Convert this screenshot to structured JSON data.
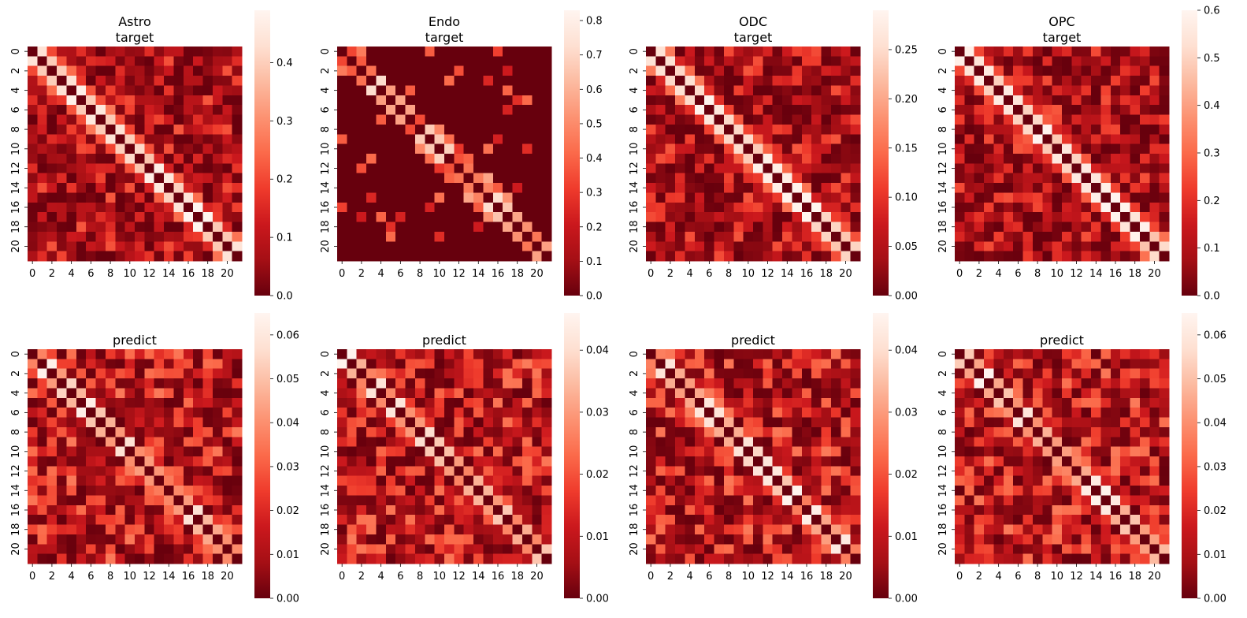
{
  "figure": {
    "layout": "2 rows x 4 columns of heatmaps, each with its own colorbar",
    "colormap": "Reds_r",
    "colormap_stops": [
      "#67000d",
      "#a50f15",
      "#cb181d",
      "#ef3b2c",
      "#fb6a4a",
      "#fc9272",
      "#fcbba1",
      "#fee0d2",
      "#fff5f0"
    ]
  },
  "chart_data": [
    {
      "type": "heatmap",
      "panel": "row1-col1",
      "title": "Astro\ntarget",
      "matrix_size": 22,
      "xticks": [
        "0",
        "2",
        "4",
        "6",
        "8",
        "10",
        "12",
        "14",
        "16",
        "18",
        "20"
      ],
      "yticks": [
        "0",
        "2",
        "4",
        "6",
        "8",
        "10",
        "12",
        "14",
        "16",
        "18",
        "20"
      ],
      "pattern": "diagonal_dark_band_light_offdiag",
      "seed": 11,
      "vmin": 0.0,
      "vmax": 0.49,
      "colorbar_ticks": [
        "0.0",
        "0.1",
        "0.2",
        "0.3",
        "0.4"
      ],
      "colorbar_values": [
        0.0,
        0.1,
        0.2,
        0.3,
        0.4
      ]
    },
    {
      "type": "heatmap",
      "panel": "row1-col2",
      "title": "Endo\ntarget",
      "matrix_size": 22,
      "xticks": [
        "0",
        "2",
        "4",
        "6",
        "8",
        "10",
        "12",
        "14",
        "16",
        "18",
        "20"
      ],
      "yticks": [
        "0",
        "2",
        "4",
        "6",
        "8",
        "10",
        "12",
        "14",
        "16",
        "18",
        "20"
      ],
      "pattern": "sparse",
      "seed": 23,
      "vmin": 0.0,
      "vmax": 0.83,
      "colorbar_ticks": [
        "0.0",
        "0.1",
        "0.2",
        "0.3",
        "0.4",
        "0.5",
        "0.6",
        "0.7",
        "0.8"
      ],
      "colorbar_values": [
        0.0,
        0.1,
        0.2,
        0.3,
        0.4,
        0.5,
        0.6,
        0.7,
        0.8
      ]
    },
    {
      "type": "heatmap",
      "panel": "row1-col3",
      "title": "ODC\ntarget",
      "matrix_size": 22,
      "xticks": [
        "0",
        "2",
        "4",
        "6",
        "8",
        "10",
        "12",
        "14",
        "16",
        "18",
        "20"
      ],
      "yticks": [
        "0",
        "2",
        "4",
        "6",
        "8",
        "10",
        "12",
        "14",
        "16",
        "18",
        "20"
      ],
      "pattern": "diagonal_dark_band_light_offdiag",
      "seed": 37,
      "vmin": 0.0,
      "vmax": 0.29,
      "colorbar_ticks": [
        "0.00",
        "0.05",
        "0.10",
        "0.15",
        "0.20",
        "0.25"
      ],
      "colorbar_values": [
        0.0,
        0.05,
        0.1,
        0.15,
        0.2,
        0.25
      ]
    },
    {
      "type": "heatmap",
      "panel": "row1-col4",
      "title": "OPC\ntarget",
      "matrix_size": 22,
      "xticks": [
        "0",
        "2",
        "4",
        "6",
        "8",
        "10",
        "12",
        "14",
        "16",
        "18",
        "20"
      ],
      "yticks": [
        "0",
        "2",
        "4",
        "6",
        "8",
        "10",
        "12",
        "14",
        "16",
        "18",
        "20"
      ],
      "pattern": "diagonal_dark_band_light_offdiag",
      "seed": 41,
      "vmin": 0.0,
      "vmax": 0.6,
      "colorbar_ticks": [
        "0.0",
        "0.1",
        "0.2",
        "0.3",
        "0.4",
        "0.5",
        "0.6"
      ],
      "colorbar_values": [
        0.0,
        0.1,
        0.2,
        0.3,
        0.4,
        0.5,
        0.6
      ]
    },
    {
      "type": "heatmap",
      "panel": "row2-col1",
      "title": "predict",
      "matrix_size": 22,
      "xticks": [
        "0",
        "2",
        "4",
        "6",
        "8",
        "10",
        "12",
        "14",
        "16",
        "18",
        "20"
      ],
      "yticks": [
        "0",
        "2",
        "4",
        "6",
        "8",
        "10",
        "12",
        "14",
        "16",
        "18",
        "20"
      ],
      "pattern": "noisy_diagonal",
      "seed": 53,
      "vmin": 0.0,
      "vmax": 0.065,
      "colorbar_ticks": [
        "0.00",
        "0.01",
        "0.02",
        "0.03",
        "0.04",
        "0.05",
        "0.06"
      ],
      "colorbar_values": [
        0.0,
        0.01,
        0.02,
        0.03,
        0.04,
        0.05,
        0.06
      ]
    },
    {
      "type": "heatmap",
      "panel": "row2-col2",
      "title": "predict",
      "matrix_size": 22,
      "xticks": [
        "0",
        "2",
        "4",
        "6",
        "8",
        "10",
        "12",
        "14",
        "16",
        "18",
        "20"
      ],
      "yticks": [
        "0",
        "2",
        "4",
        "6",
        "8",
        "10",
        "12",
        "14",
        "16",
        "18",
        "20"
      ],
      "pattern": "noisy_diagonal",
      "seed": 67,
      "vmin": 0.0,
      "vmax": 0.046,
      "colorbar_ticks": [
        "0.00",
        "0.01",
        "0.02",
        "0.03",
        "0.04"
      ],
      "colorbar_values": [
        0.0,
        0.01,
        0.02,
        0.03,
        0.04
      ]
    },
    {
      "type": "heatmap",
      "panel": "row2-col3",
      "title": "predict",
      "matrix_size": 22,
      "xticks": [
        "0",
        "2",
        "4",
        "6",
        "8",
        "10",
        "12",
        "14",
        "16",
        "18",
        "20"
      ],
      "yticks": [
        "0",
        "2",
        "4",
        "6",
        "8",
        "10",
        "12",
        "14",
        "16",
        "18",
        "20"
      ],
      "pattern": "noisy_diagonal",
      "seed": 79,
      "vmin": 0.0,
      "vmax": 0.046,
      "colorbar_ticks": [
        "0.00",
        "0.01",
        "0.02",
        "0.03",
        "0.04"
      ],
      "colorbar_values": [
        0.0,
        0.01,
        0.02,
        0.03,
        0.04
      ]
    },
    {
      "type": "heatmap",
      "panel": "row2-col4",
      "title": "predict",
      "matrix_size": 22,
      "xticks": [
        "0",
        "2",
        "4",
        "6",
        "8",
        "10",
        "12",
        "14",
        "16",
        "18",
        "20"
      ],
      "yticks": [
        "0",
        "2",
        "4",
        "6",
        "8",
        "10",
        "12",
        "14",
        "16",
        "18",
        "20"
      ],
      "pattern": "noisy_diagonal",
      "seed": 97,
      "vmin": 0.0,
      "vmax": 0.065,
      "colorbar_ticks": [
        "0.00",
        "0.01",
        "0.02",
        "0.03",
        "0.04",
        "0.05",
        "0.06"
      ],
      "colorbar_values": [
        0.0,
        0.01,
        0.02,
        0.03,
        0.04,
        0.05,
        0.06
      ]
    }
  ]
}
